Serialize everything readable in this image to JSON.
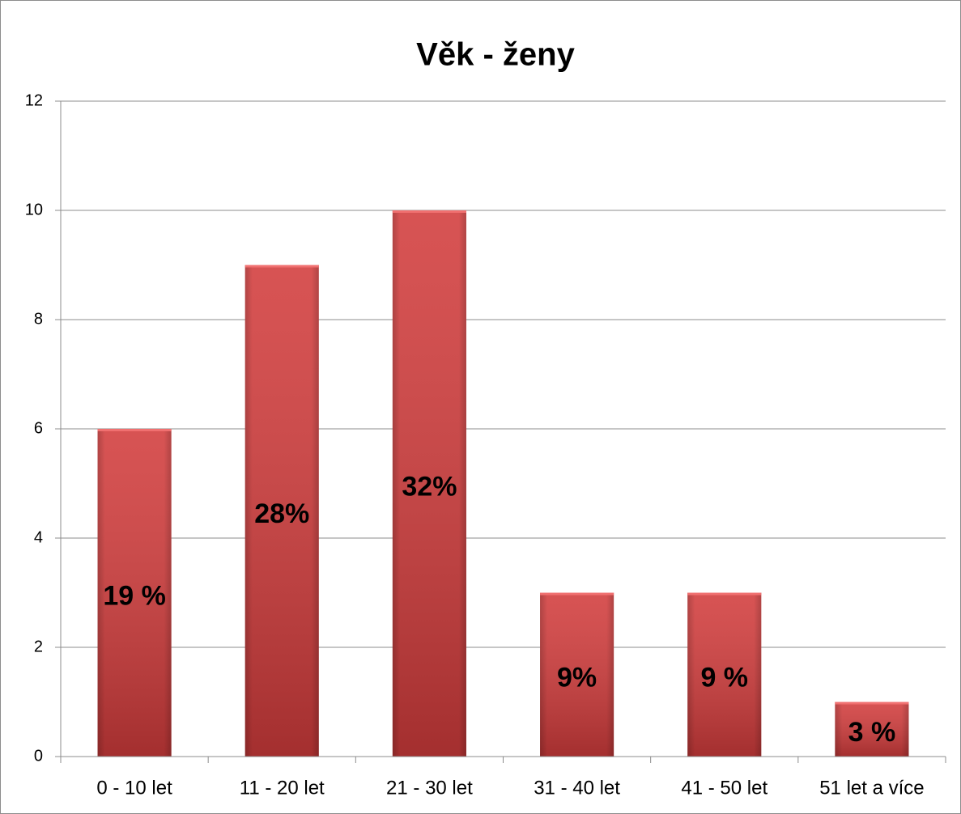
{
  "chart_data": {
    "type": "bar",
    "title": "Věk - ženy",
    "categories": [
      "0 - 10 let",
      "11 - 20 let",
      "21 - 30 let",
      "31 - 40 let",
      "41 - 50 let",
      "51 let a více"
    ],
    "values": [
      6,
      9,
      10,
      3,
      3,
      1
    ],
    "annotations": [
      "19 %",
      "28%",
      "32%",
      "9%",
      "9 %",
      "3 %"
    ],
    "color": "#d23c3c",
    "ylim": [
      0,
      12
    ],
    "yticks": [
      0,
      2,
      4,
      6,
      8,
      10,
      12
    ],
    "grid": true
  }
}
